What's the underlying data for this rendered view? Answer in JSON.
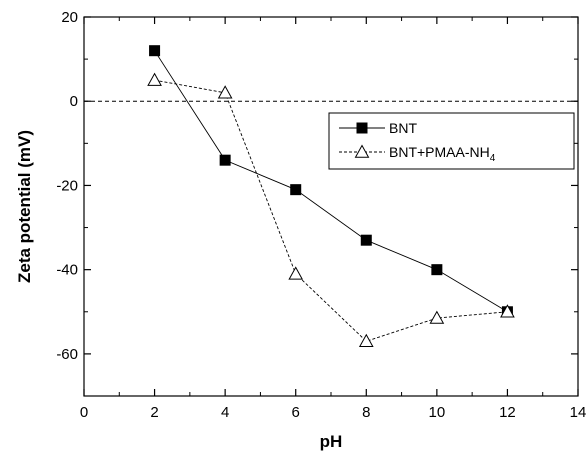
{
  "chart_data": {
    "type": "line",
    "title": "",
    "xlabel": "pH",
    "ylabel": "Zeta potential  (mV)",
    "xlim": [
      0,
      14
    ],
    "ylim": [
      -70,
      20
    ],
    "xticks": [
      0,
      2,
      4,
      6,
      8,
      10,
      12,
      14
    ],
    "yticks": [
      -60,
      -40,
      -20,
      0,
      20
    ],
    "x_tick_labels": [
      "0",
      "2",
      "4",
      "6",
      "8",
      "10",
      "12",
      "14"
    ],
    "y_tick_labels": [
      "-60",
      "-40",
      "-20",
      "0",
      "20"
    ],
    "reference_line": {
      "y": 0,
      "style": "dashed"
    },
    "grid": false,
    "legend_position": "right",
    "series": [
      {
        "name": "BNT",
        "marker": "filled-square",
        "line_style": "solid",
        "x": [
          2,
          4,
          6,
          8,
          10,
          12
        ],
        "y": [
          12,
          -14,
          -21,
          -33,
          -40,
          -50
        ]
      },
      {
        "name": "BNT+PMAA-NH",
        "name_subscript": "4",
        "marker": "open-triangle",
        "line_style": "dashed",
        "x": [
          2,
          4,
          6,
          8,
          10,
          12
        ],
        "y": [
          5,
          2,
          -41,
          -57,
          -51.5,
          -50
        ]
      }
    ]
  }
}
